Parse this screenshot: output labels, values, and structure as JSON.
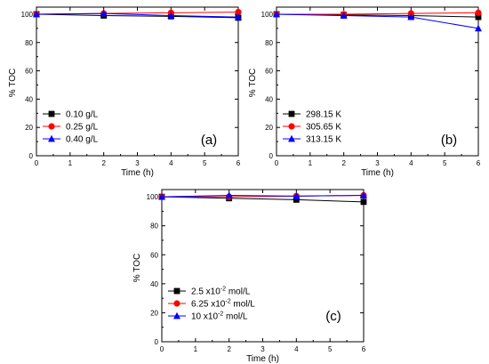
{
  "chart_data": [
    {
      "type": "line",
      "panel_label": "(a)",
      "xlabel": "Time (h)",
      "ylabel": "% TOC",
      "xlim": [
        0,
        6
      ],
      "ylim": [
        0,
        105
      ],
      "xticks": [
        "0",
        "1",
        "2",
        "3",
        "4",
        "5",
        "6"
      ],
      "yticks": [
        "0",
        "20",
        "40",
        "60",
        "80",
        "100"
      ],
      "grid": false,
      "legend_position": "bottom-left",
      "x": [
        0,
        2,
        4,
        6
      ],
      "series": [
        {
          "name": "0.10 g/L",
          "color": "#000000",
          "marker": "square",
          "values": [
            100,
            99,
            98.5,
            97.5
          ]
        },
        {
          "name": "0.25 g/L",
          "color": "#ff0000",
          "marker": "circle",
          "values": [
            100,
            100.5,
            101,
            101.5
          ]
        },
        {
          "name": "0.40 g/L",
          "color": "#0000ff",
          "marker": "triangle",
          "values": [
            100,
            100.5,
            99,
            98
          ]
        }
      ]
    },
    {
      "type": "line",
      "panel_label": "(b)",
      "xlabel": "Time (h)",
      "ylabel": "% TOC",
      "xlim": [
        0,
        6
      ],
      "ylim": [
        0,
        105
      ],
      "xticks": [
        "0",
        "1",
        "2",
        "3",
        "4",
        "5",
        "6"
      ],
      "yticks": [
        "0",
        "20",
        "40",
        "60",
        "80",
        "100"
      ],
      "grid": false,
      "legend_position": "bottom-left",
      "x": [
        0,
        2,
        4,
        6
      ],
      "series": [
        {
          "name": "298.15 K",
          "color": "#000000",
          "marker": "square",
          "values": [
            100,
            99.5,
            99,
            98
          ]
        },
        {
          "name": "305.65 K",
          "color": "#ff0000",
          "marker": "circle",
          "values": [
            100,
            100,
            100.5,
            101
          ]
        },
        {
          "name": "313.15 K",
          "color": "#0000ff",
          "marker": "triangle",
          "values": [
            100,
            99,
            98,
            90
          ]
        }
      ]
    },
    {
      "type": "line",
      "panel_label": "(c)",
      "xlabel": "Time (h)",
      "ylabel": "% TOC",
      "xlim": [
        0,
        6
      ],
      "ylim": [
        0,
        105
      ],
      "xticks": [
        "0",
        "1",
        "2",
        "3",
        "4",
        "5",
        "6"
      ],
      "yticks": [
        "0",
        "20",
        "40",
        "60",
        "80",
        "100"
      ],
      "grid": false,
      "legend_position": "bottom-left",
      "x": [
        0,
        2,
        4,
        6
      ],
      "series": [
        {
          "name": "2.5 x10",
          "name_sup": "-2",
          "name_unit": "mol/L",
          "color": "#000000",
          "marker": "square",
          "values": [
            100,
            99,
            98,
            96.5
          ]
        },
        {
          "name": "6.25 x10",
          "name_sup": "-2",
          "name_unit": "mol/L",
          "color": "#ff0000",
          "marker": "circle",
          "values": [
            100,
            100,
            100.5,
            101
          ]
        },
        {
          "name": "10 x10",
          "name_sup": "-2",
          "name_unit": "mol/L",
          "color": "#0000ff",
          "marker": "triangle",
          "values": [
            100,
            101,
            100.5,
            101
          ]
        }
      ]
    }
  ]
}
